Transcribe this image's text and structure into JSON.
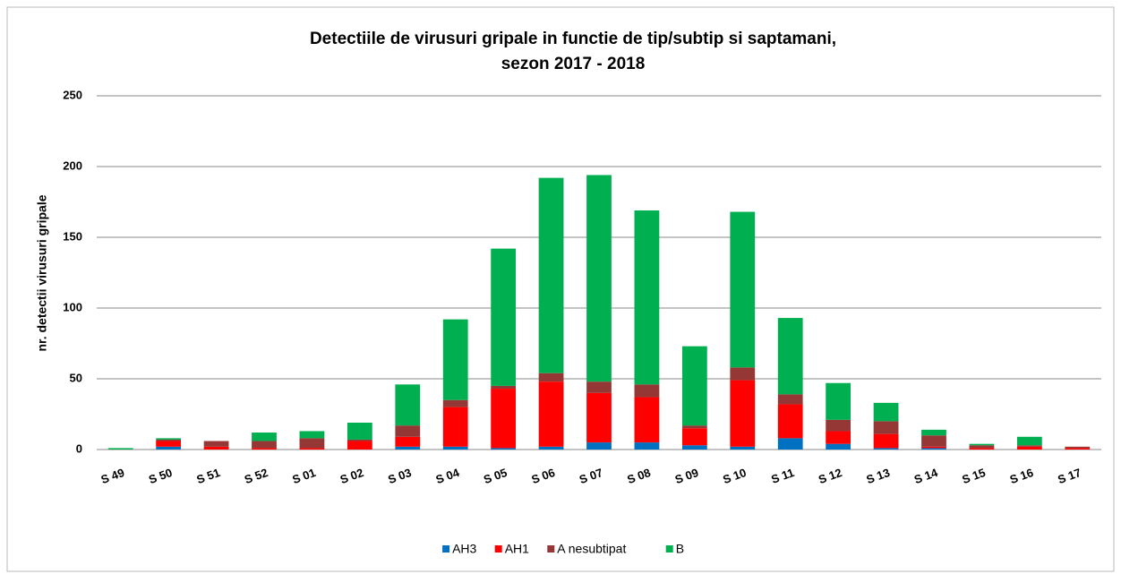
{
  "chart_data": {
    "type": "stacked_bar",
    "title": [
      "Detectiile de virusuri gripale in functie de tip/subtip si saptamani,",
      "sezon 2017 - 2018"
    ],
    "y_label": "nr. detectii virusuri gripale",
    "categories": [
      "S 49",
      "S 50",
      "S 51",
      "S 52",
      "S 01",
      "S 02",
      "S 03",
      "S 04",
      "S 05",
      "S 06",
      "S 07",
      "S 08",
      "S 09",
      "S 10",
      "S 11",
      "S 12",
      "S 13",
      "S 14",
      "S 15",
      "S 16",
      "S 17"
    ],
    "series": [
      {
        "name": "AH3",
        "color": "#0070c0",
        "values": [
          0,
          2,
          0,
          0,
          0,
          0,
          2,
          2,
          1,
          2,
          5,
          5,
          3,
          2,
          8,
          4,
          1,
          1,
          0,
          0,
          0
        ]
      },
      {
        "name": "AH1",
        "color": "#ff0000",
        "values": [
          0,
          4,
          2,
          1,
          1,
          6,
          7,
          28,
          42,
          46,
          35,
          32,
          12,
          47,
          24,
          9,
          10,
          1,
          1,
          2,
          1
        ]
      },
      {
        "name": "A nesubtipat",
        "color": "#953735",
        "values": [
          0,
          1,
          4,
          5,
          7,
          1,
          8,
          5,
          2,
          6,
          8,
          9,
          2,
          9,
          7,
          8,
          9,
          8,
          2,
          1,
          1
        ]
      },
      {
        "name": "B",
        "color": "#00b050",
        "values": [
          1,
          1,
          0,
          6,
          5,
          12,
          29,
          57,
          97,
          138,
          146,
          123,
          56,
          110,
          54,
          26,
          13,
          4,
          1,
          6,
          0
        ]
      }
    ],
    "ylim": [
      0,
      250
    ],
    "yticks": [
      0,
      50,
      100,
      150,
      200,
      250
    ],
    "grid": true,
    "legend": "bottom"
  }
}
